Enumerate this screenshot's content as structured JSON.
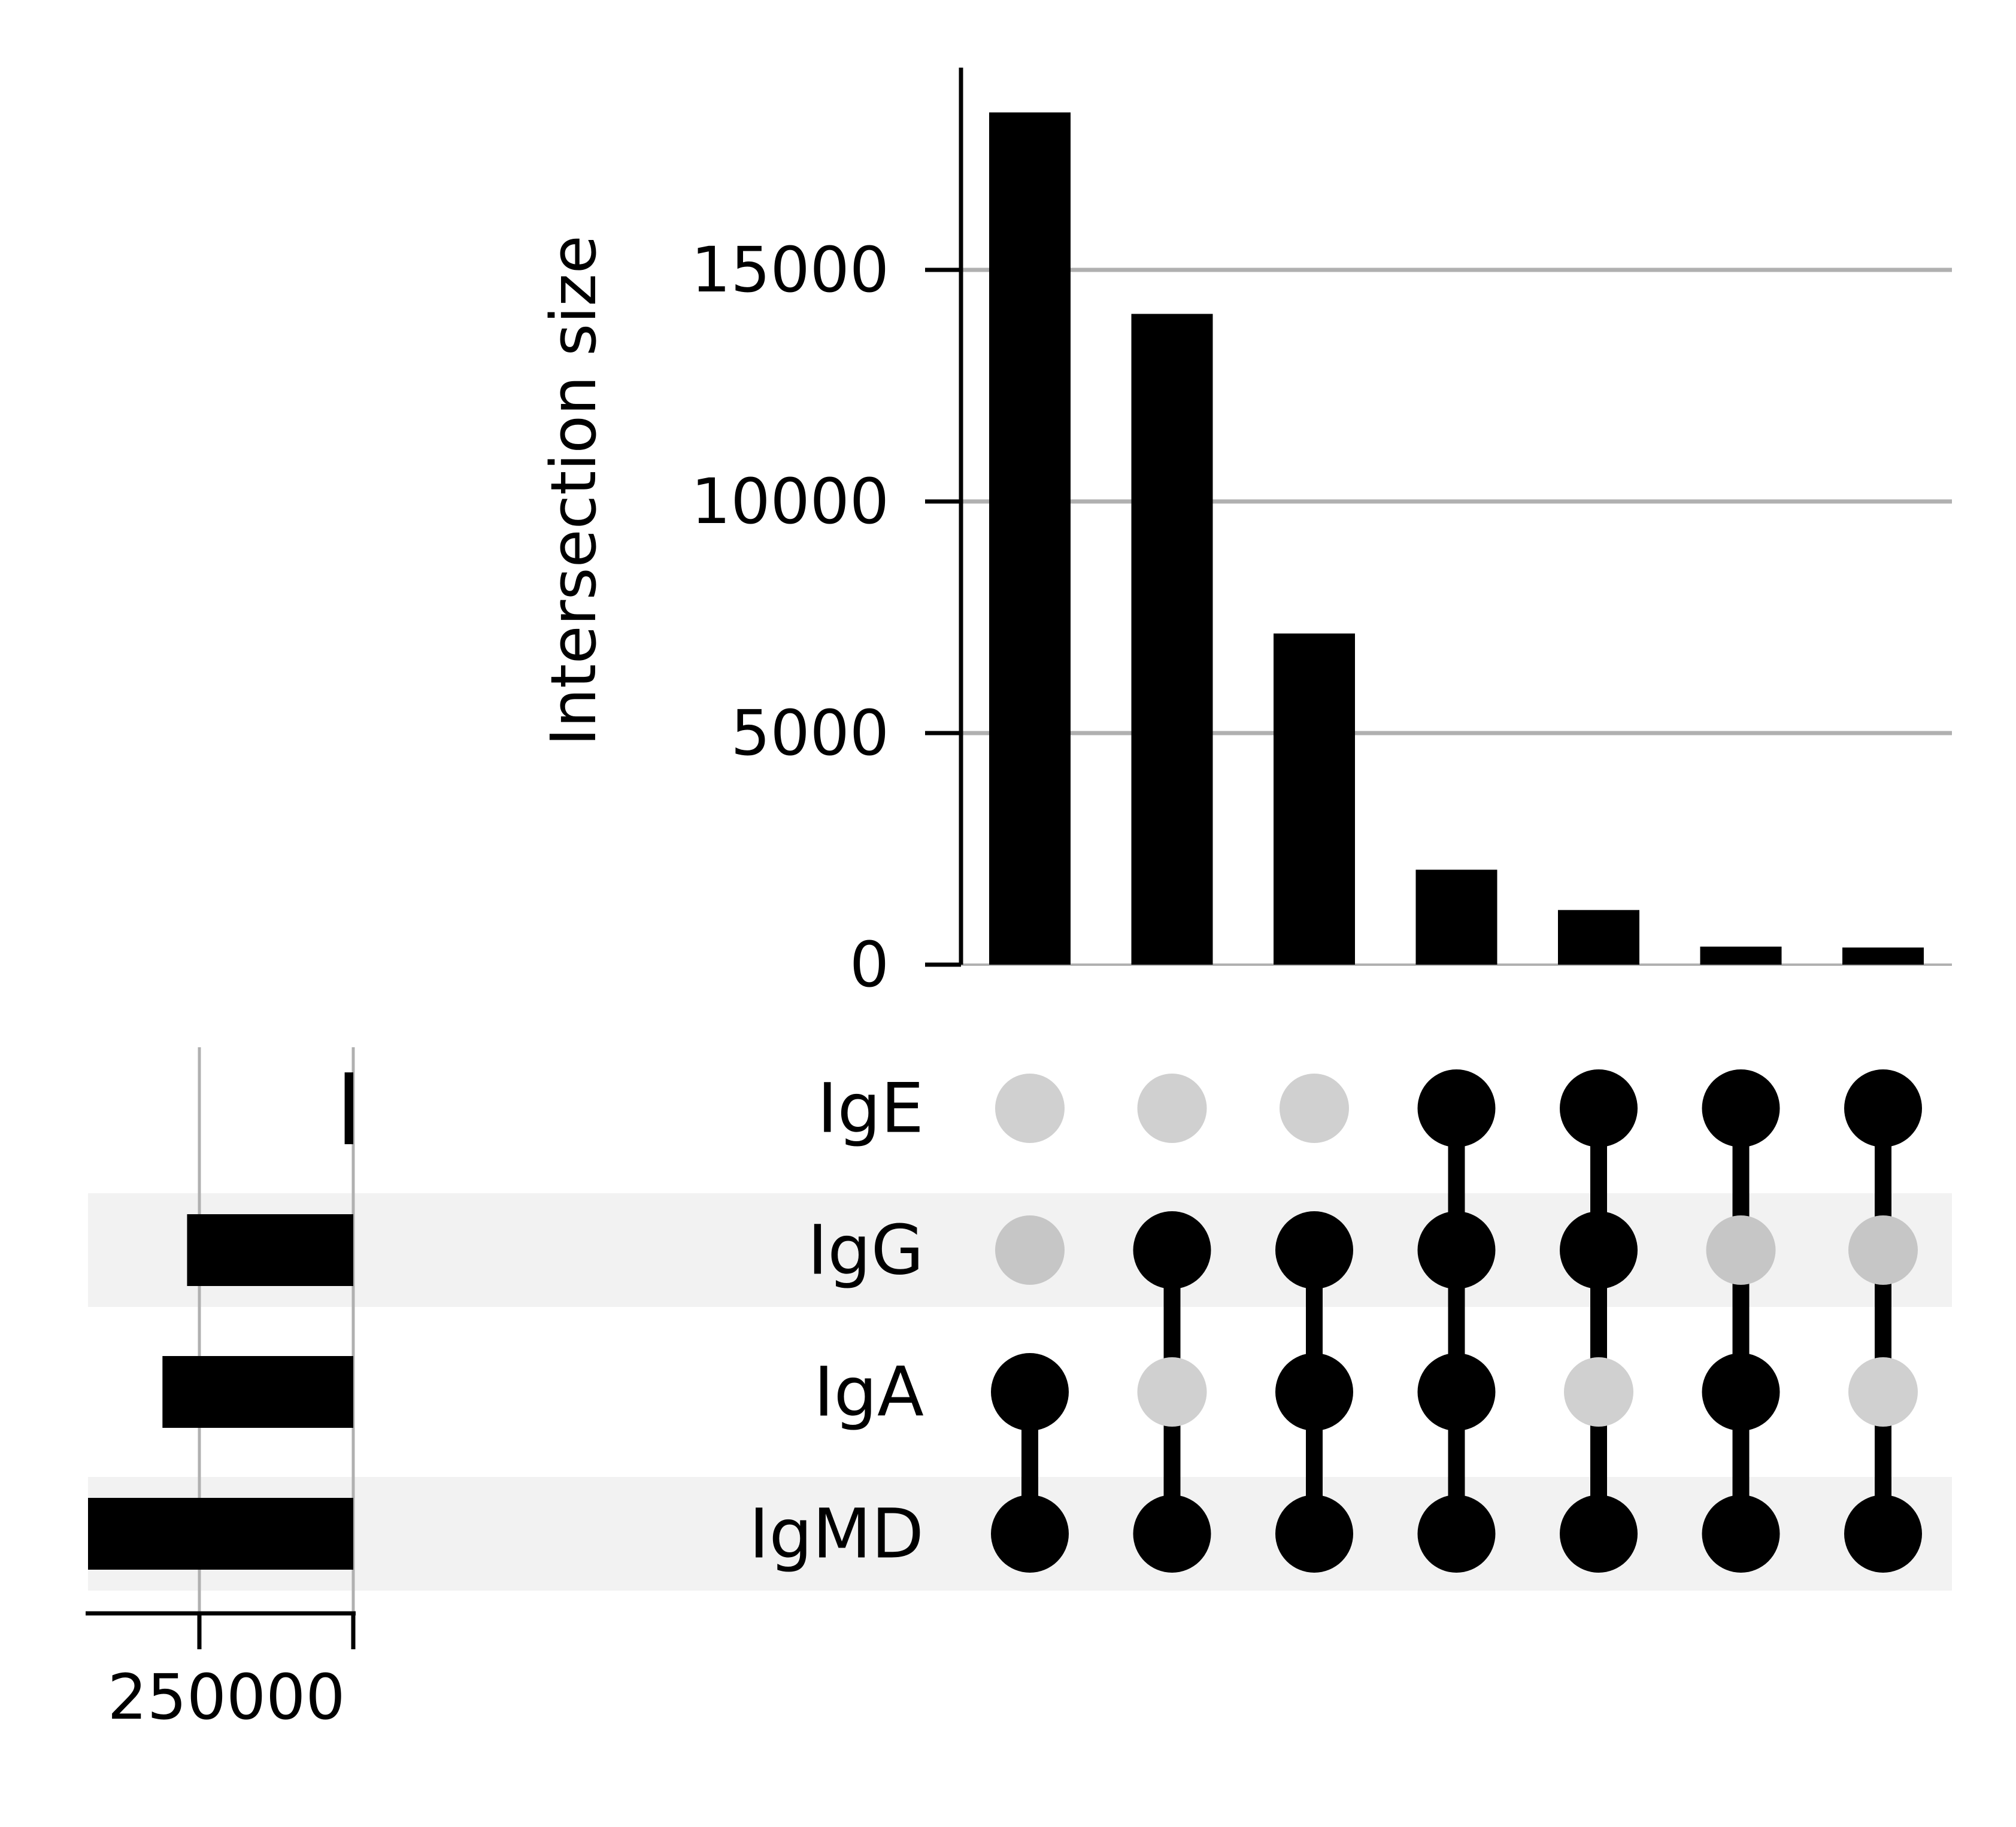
{
  "chart_data": {
    "type": "upset",
    "sets": [
      "IgE",
      "IgG",
      "IgA",
      "IgMD"
    ],
    "intersection_ylabel": "Intersection size",
    "intersection_ylim": [
      0,
      19000
    ],
    "intersection_yticks": [
      0,
      5000,
      10000,
      15000
    ],
    "intersection_ytick_labels": [
      "0",
      "5000",
      "10000",
      "15000"
    ],
    "grid": true,
    "intersections": [
      {
        "members": [
          "IgA",
          "IgMD"
        ],
        "value": 18400
      },
      {
        "members": [
          "IgG",
          "IgMD"
        ],
        "value": 14050
      },
      {
        "members": [
          "IgG",
          "IgA",
          "IgMD"
        ],
        "value": 7150
      },
      {
        "members": [
          "IgE",
          "IgG",
          "IgA",
          "IgMD"
        ],
        "value": 2050
      },
      {
        "members": [
          "IgE",
          "IgG",
          "IgMD"
        ],
        "value": 1180
      },
      {
        "members": [
          "IgE",
          "IgA",
          "IgMD"
        ],
        "value": 390
      },
      {
        "members": [
          "IgE",
          "IgMD"
        ],
        "value": 370
      }
    ],
    "set_sizes": [
      {
        "set": "IgE",
        "value": 14000
      },
      {
        "set": "IgG",
        "value": 270000
      },
      {
        "set": "IgA",
        "value": 310000
      },
      {
        "set": "IgMD",
        "value": 485000
      }
    ],
    "set_size_xticks": [
      250000,
      0
    ],
    "set_size_xtick_label": "250000",
    "set_size_xlim": [
      500000,
      0
    ],
    "colors": {
      "bar": "#000000",
      "dot_on": "#000000",
      "dot_off": "#d0d0d0",
      "dot_off_shaded": "#c6c6c6",
      "stripe": "#f2f2f2",
      "grid": "#b0b0b0"
    }
  }
}
